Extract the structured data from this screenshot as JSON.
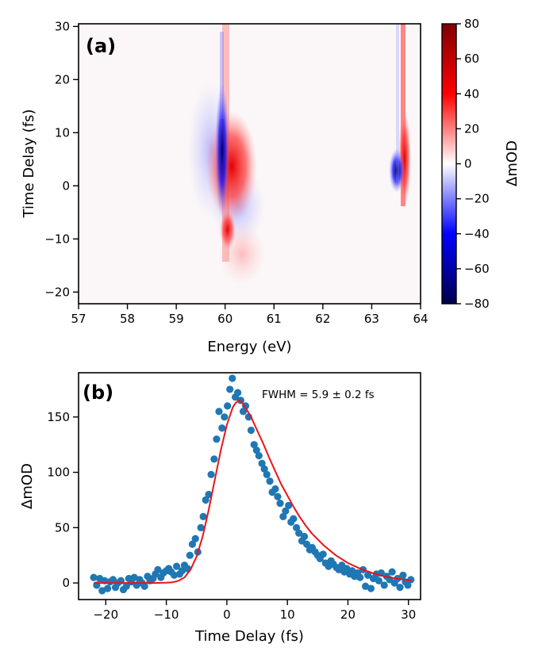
{
  "chart_data": [
    {
      "type": "heatmap",
      "panel_label": "(a)",
      "xlabel": "Energy (eV)",
      "ylabel": "Time Delay (fs)",
      "xlim": [
        57,
        64
      ],
      "ylim": [
        -22.2,
        30.5
      ],
      "xticks": [
        57,
        58,
        59,
        60,
        61,
        62,
        63,
        64
      ],
      "yticks": [
        -20,
        -10,
        0,
        10,
        20,
        30
      ],
      "colormap": "seismic",
      "colorbar": {
        "label": "ΔmOD",
        "range": [
          -80,
          80
        ],
        "ticks": [
          -80,
          -60,
          -40,
          -20,
          0,
          20,
          40,
          60,
          80
        ],
        "tick_labels": [
          "−80",
          "−60",
          "−40",
          "−20",
          "0",
          "20",
          "40",
          "60",
          "80"
        ],
        "colors": {
          "min": "#00004c",
          "mid": "#ffffff",
          "max": "#800000"
        }
      },
      "features": [
        {
          "energy": 59.9,
          "polarity": "negative",
          "peak_delay": 2,
          "peak_value": -80,
          "note": "dark blue narrow stripe"
        },
        {
          "energy": 60.0,
          "polarity": "positive",
          "peak_delay": 0,
          "peak_value": 60,
          "note": "red band with fringes"
        },
        {
          "energy": 63.55,
          "polarity": "negative",
          "peak_delay": 1,
          "peak_value": -40
        },
        {
          "energy": 63.65,
          "polarity": "positive",
          "peak_delay": 5,
          "peak_value": 50
        }
      ]
    },
    {
      "type": "scatter",
      "panel_label": "(b)",
      "xlabel": "Time Delay (fs)",
      "ylabel": "ΔmOD",
      "xlim": [
        -24.5,
        32
      ],
      "ylim": [
        -15,
        190
      ],
      "xticks": [
        -20,
        -10,
        0,
        10,
        20,
        30
      ],
      "yticks": [
        0,
        50,
        100,
        150
      ],
      "tick_labels_x": [
        "−20",
        "−10",
        "0",
        "10",
        "20",
        "30"
      ],
      "annotation": "FWHM = 5.9 ± 0.2 fs",
      "series": [
        {
          "name": "data",
          "color": "#1f77b4",
          "x": [
            -22,
            -21.5,
            -21,
            -20.6,
            -20.2,
            -19.7,
            -19.3,
            -18.8,
            -18.4,
            -18,
            -17.5,
            -17.1,
            -16.6,
            -16.2,
            -15.8,
            -15.3,
            -14.9,
            -14.4,
            -14,
            -13.6,
            -13.1,
            -12.7,
            -12.2,
            -11.8,
            -11.4,
            -10.9,
            -10.5,
            -10,
            -9.6,
            -9.2,
            -8.7,
            -8.3,
            -7.8,
            -7.4,
            -7,
            -6.5,
            -6.1,
            -5.7,
            -5.2,
            -4.8,
            -4.3,
            -3.9,
            -3.5,
            -3,
            -2.6,
            -2.1,
            -1.7,
            -1.3,
            -0.8,
            -0.4,
            0.1,
            0.5,
            0.9,
            1.4,
            1.8,
            2.3,
            2.7,
            3.1,
            3.6,
            4,
            4.5,
            4.9,
            5.3,
            5.8,
            6.2,
            6.6,
            7.1,
            7.5,
            8,
            8.4,
            8.8,
            9.3,
            9.7,
            10.2,
            10.6,
            11,
            11.5,
            11.9,
            12.4,
            12.8,
            13.2,
            13.7,
            14.1,
            14.6,
            15,
            15.4,
            15.9,
            16.3,
            16.8,
            17.2,
            17.6,
            18.1,
            18.5,
            19,
            19.4,
            19.8,
            20.3,
            20.7,
            21.1,
            21.6,
            22,
            22.5,
            22.9,
            23.3,
            23.8,
            24.2,
            24.7,
            25.1,
            25.5,
            26,
            26.4,
            26.9,
            27.3,
            27.7,
            28.2,
            28.6,
            29.1,
            29.5,
            29.9,
            30.4
          ],
          "y": [
            5,
            -2,
            4,
            -7,
            2,
            -5,
            1,
            3,
            -4,
            0,
            2,
            -6,
            -3,
            4,
            1,
            5,
            -2,
            3,
            0,
            -3,
            6,
            2,
            4,
            8,
            12,
            5,
            9,
            11,
            13,
            10,
            7,
            15,
            8,
            11,
            16,
            13,
            25,
            35,
            40,
            28,
            50,
            60,
            75,
            80,
            98,
            112,
            130,
            155,
            140,
            150,
            160,
            175,
            185,
            168,
            172,
            165,
            155,
            160,
            150,
            138,
            125,
            120,
            115,
            108,
            103,
            98,
            92,
            82,
            85,
            78,
            72,
            60,
            65,
            70,
            55,
            58,
            50,
            45,
            38,
            42,
            35,
            30,
            32,
            28,
            25,
            22,
            26,
            18,
            15,
            20,
            17,
            14,
            12,
            16,
            10,
            13,
            8,
            11,
            6,
            9,
            5,
            12,
            -3,
            7,
            -5,
            4,
            8,
            2,
            9,
            -2,
            6,
            3,
            10,
            0,
            4,
            -4,
            7,
            1,
            -2,
            3
          ]
        },
        {
          "name": "fit",
          "color": "#e8141c",
          "x": [
            -22,
            -20,
            -18,
            -16,
            -14,
            -12,
            -10,
            -9,
            -8,
            -7,
            -6,
            -5,
            -4,
            -3,
            -2,
            -1,
            0,
            1,
            1.5,
            2,
            2.5,
            3,
            4,
            5,
            6,
            7,
            8,
            9,
            10,
            11,
            12,
            13,
            14,
            16,
            18,
            20,
            22,
            24,
            26,
            28,
            30.5
          ],
          "y": [
            0,
            0,
            0,
            0,
            0,
            0,
            0.2,
            0.6,
            2,
            5,
            12,
            24,
            42,
            66,
            93,
            120,
            143,
            159,
            163,
            165,
            163,
            159,
            150,
            138,
            126,
            113,
            101,
            89,
            79,
            69,
            60,
            52,
            45,
            34,
            25,
            18,
            13,
            9,
            6,
            4,
            2
          ]
        }
      ]
    }
  ]
}
